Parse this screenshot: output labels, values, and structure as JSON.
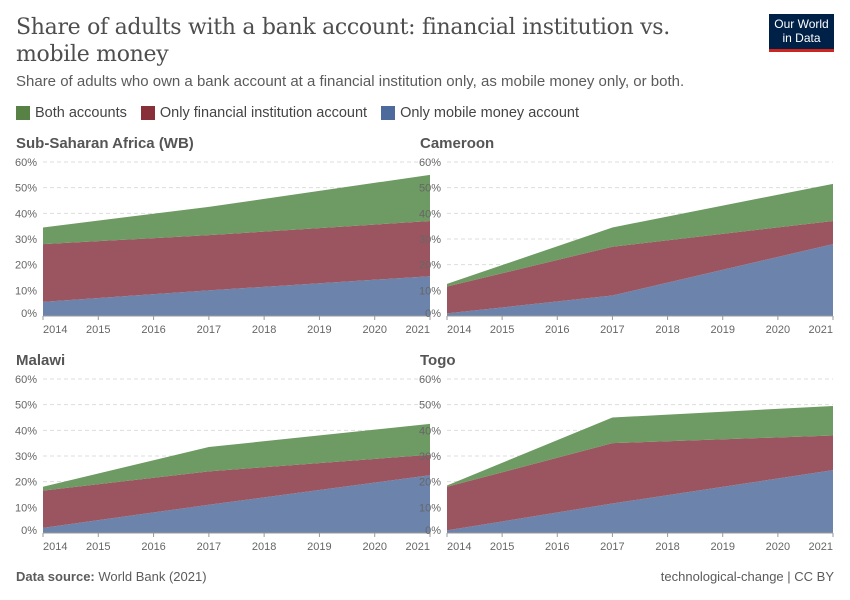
{
  "header": {
    "title": "Share of adults with a bank account: financial institution vs. mobile money",
    "subtitle": "Share of adults who own a bank account at a financial institution only, as mobile money only, or both.",
    "logo": "Our World in Data"
  },
  "legend": [
    {
      "label": "Both accounts",
      "color": "#578145"
    },
    {
      "label": "Only financial institution account",
      "color": "#883039"
    },
    {
      "label": "Only mobile money account",
      "color": "#4c6a9c"
    }
  ],
  "footer": {
    "source_label": "Data source:",
    "source": "World Bank (2021)",
    "license": "technological-change | CC BY"
  },
  "chart_data": [
    {
      "type": "area",
      "title": "Sub-Saharan Africa (WB)",
      "x": [
        2014,
        2017,
        2021
      ],
      "ylim": [
        0,
        60
      ],
      "yticks": [
        "0%",
        "10%",
        "20%",
        "30%",
        "40%",
        "50%",
        "60%"
      ],
      "xticks": [
        2014,
        2015,
        2016,
        2017,
        2018,
        2019,
        2020,
        2021
      ],
      "series": [
        {
          "name": "Only mobile money account",
          "values": [
            5.5,
            10,
            15.5
          ]
        },
        {
          "name": "Only financial institution account",
          "values": [
            22.5,
            21.5,
            21.5
          ]
        },
        {
          "name": "Both accounts",
          "values": [
            6.5,
            11,
            18
          ]
        }
      ]
    },
    {
      "type": "area",
      "title": "Cameroon",
      "x": [
        2014,
        2017,
        2021
      ],
      "ylim": [
        0,
        60
      ],
      "yticks": [
        "0%",
        "10%",
        "20%",
        "30%",
        "40%",
        "50%",
        "60%"
      ],
      "xticks": [
        2014,
        2015,
        2016,
        2017,
        2018,
        2019,
        2020,
        2021
      ],
      "series": [
        {
          "name": "Only mobile money account",
          "values": [
            1,
            8,
            28
          ]
        },
        {
          "name": "Only financial institution account",
          "values": [
            10.5,
            19,
            9
          ]
        },
        {
          "name": "Both accounts",
          "values": [
            1,
            7.5,
            14.5
          ]
        }
      ]
    },
    {
      "type": "area",
      "title": "Malawi",
      "x": [
        2014,
        2017,
        2021
      ],
      "ylim": [
        0,
        60
      ],
      "yticks": [
        "0%",
        "10%",
        "20%",
        "30%",
        "40%",
        "50%",
        "60%"
      ],
      "xticks": [
        2014,
        2015,
        2016,
        2017,
        2018,
        2019,
        2020,
        2021
      ],
      "series": [
        {
          "name": "Only mobile money account",
          "values": [
            2,
            11,
            22.5
          ]
        },
        {
          "name": "Only financial institution account",
          "values": [
            14.5,
            13,
            8
          ]
        },
        {
          "name": "Both accounts",
          "values": [
            1.5,
            9.5,
            12
          ]
        }
      ]
    },
    {
      "type": "area",
      "title": "Togo",
      "x": [
        2014,
        2017,
        2021
      ],
      "ylim": [
        0,
        60
      ],
      "yticks": [
        "0%",
        "10%",
        "20%",
        "30%",
        "40%",
        "50%",
        "60%"
      ],
      "xticks": [
        2014,
        2015,
        2016,
        2017,
        2018,
        2019,
        2020,
        2021
      ],
      "series": [
        {
          "name": "Only mobile money account",
          "values": [
            1,
            11.5,
            24.5
          ]
        },
        {
          "name": "Only financial institution account",
          "values": [
            17,
            23.5,
            13.5
          ]
        },
        {
          "name": "Both accounts",
          "values": [
            0.5,
            10,
            11.5
          ]
        }
      ]
    }
  ]
}
